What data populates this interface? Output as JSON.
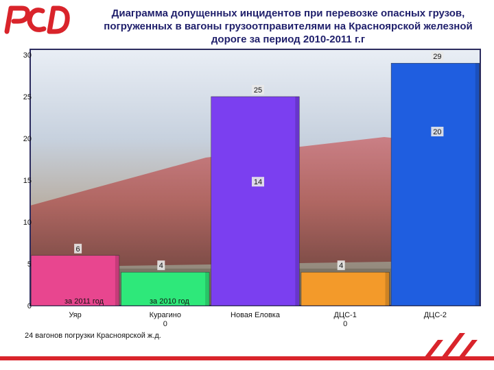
{
  "header": {
    "logo_label": "RZD logo",
    "title_lines": [
      "Диаграмма допущенных инцидентов при перевозке опасных грузов,",
      "погруженных в вагоны грузоотправителями на Красноярской железной",
      "дороге за период 2010-2011 г.г"
    ]
  },
  "colors": {
    "brand_red": "#d9242b",
    "title_text": "#1f1f6b",
    "series_2011": "#e8468f",
    "series_2010": "#2ee87a"
  },
  "chart_data": {
    "type": "bar",
    "title": "Диаграмма допущенных инцидентов при перевозке опасных грузов, погруженных в вагоны грузоотправителями на Красноярской железной дороге за период 2010-2011 г.г",
    "categories": [
      "Уяр",
      "Курагино",
      "Новая Еловка",
      "ДЦС-1",
      "ДЦС-2"
    ],
    "category_sublabels": [
      "",
      "0",
      "",
      "0",
      ""
    ],
    "bars": [
      {
        "category": "Уяр",
        "value": 6,
        "color": "#e8468f"
      },
      {
        "category": "Курагино",
        "value": 4,
        "color": "#2ee87a"
      },
      {
        "category": "Новая Еловка",
        "value": 25,
        "color": "#7b3ff0"
      },
      {
        "category": "ДЦС-1",
        "value": 4,
        "color": "#f39a2a"
      },
      {
        "category": "ДЦС-2",
        "value": 29,
        "color": "#1f5ee0"
      }
    ],
    "value_labels": [
      {
        "category": "Уяр",
        "value": 6
      },
      {
        "category": "Курагино",
        "value": 4
      },
      {
        "category": "Новая Еловка",
        "value": 14
      },
      {
        "category": "Новая Еловка",
        "value": 25
      },
      {
        "category": "ДЦС-1",
        "value": 4
      },
      {
        "category": "ДЦС-2",
        "value": 20
      },
      {
        "category": "ДЦС-2",
        "value": 29
      }
    ],
    "legend": [
      {
        "name": "за  2011 год",
        "color": "#e8468f"
      },
      {
        "name": "за  2010 год",
        "color": "#2ee87a"
      }
    ],
    "legend_position": "bottom-left inside plot",
    "ylim": [
      0,
      30
    ],
    "yticks": [
      0,
      5,
      10,
      15,
      20,
      25,
      30
    ],
    "grid": false,
    "xlabel": "",
    "ylabel": ""
  },
  "footnote": "24 вагонов погрузки Красноярской ж.д."
}
